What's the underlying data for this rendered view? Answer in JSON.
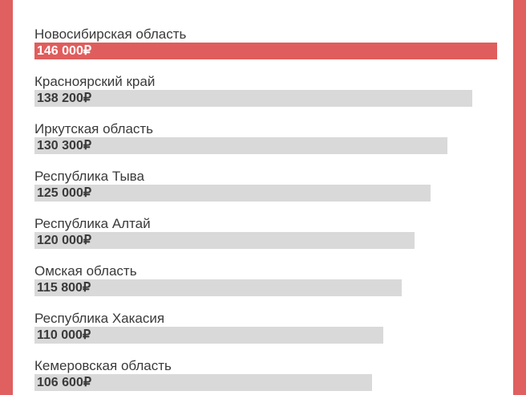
{
  "chart_data": {
    "type": "bar",
    "orientation": "horizontal",
    "categories": [
      "Новосибирская область",
      "Красноярский край",
      "Иркутская область",
      "Республика Тыва",
      "Республика Алтай",
      "Омская область",
      "Республика Хакасия",
      "Кемеровская область"
    ],
    "values": [
      146000,
      138200,
      130300,
      125000,
      120000,
      115800,
      110000,
      106600
    ],
    "value_labels": [
      "146 000₽",
      "138 200₽",
      "130 300₽",
      "125 000₽",
      "120 000₽",
      "115 800₽",
      "110 000₽",
      "106 600₽"
    ],
    "highlighted_index": 0,
    "xlim": [
      0,
      146000
    ],
    "grid": false,
    "colors": {
      "highlight": "#e05d5d",
      "bar": "#d9d9d9",
      "frame": "#e05f5f",
      "text": "#3a3a3a"
    }
  }
}
